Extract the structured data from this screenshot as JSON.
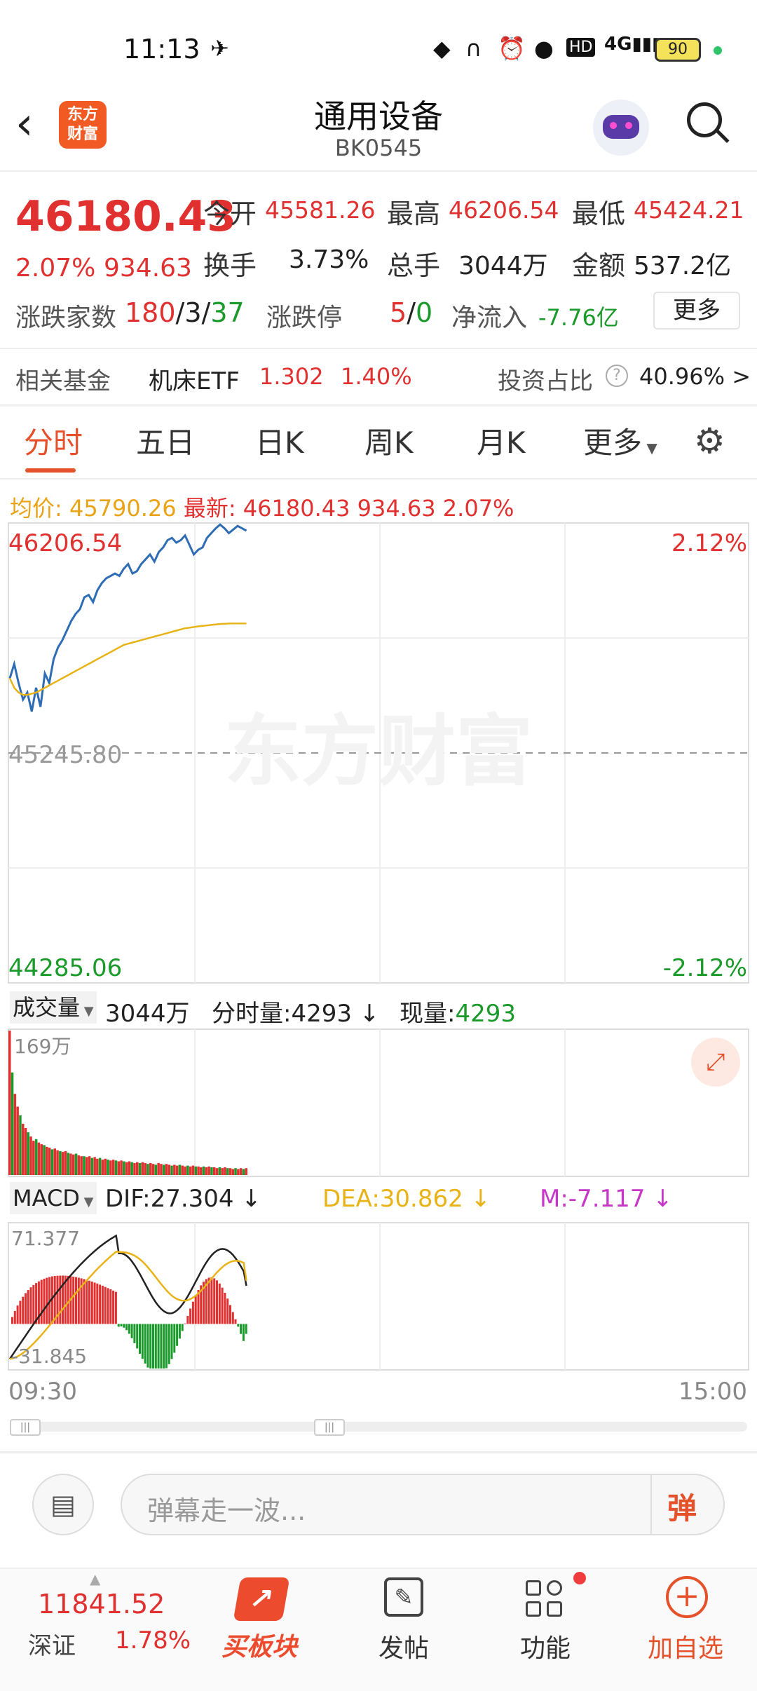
{
  "status_bar": {
    "time": "11:13",
    "battery": "90",
    "network": "4G"
  },
  "header": {
    "logo_text_line1": "东方",
    "logo_text_line2": "财富",
    "title": "通用设备",
    "code": "BK0545"
  },
  "quote": {
    "price": "46180.43",
    "change_pct": "2.07%",
    "change": "934.63",
    "open_label": "今开",
    "open": "45581.26",
    "high_label": "最高",
    "high": "46206.54",
    "low_label": "最低",
    "low": "45424.21",
    "turnover_label": "换手",
    "turnover": "3.73%",
    "volume_label": "总手",
    "volume": "3044万",
    "amount_label": "金额",
    "amount": "537.2亿",
    "breadth_label": "涨跌家数",
    "breadth_up": "180",
    "breadth_flat": "3",
    "breadth_down": "37",
    "limit_label": "涨跌停",
    "limit_up": "5",
    "limit_down": "0",
    "netflow_label": "净流入",
    "netflow": "-7.76亿",
    "more_button": "更多"
  },
  "fund": {
    "label": "相关基金",
    "name": "机床ETF",
    "price": "1.302",
    "pct": "1.40%",
    "ratio_label": "投资占比",
    "ratio": "40.96% >"
  },
  "tabs": [
    "分时",
    "五日",
    "日K",
    "周K",
    "月K",
    "更多"
  ],
  "chart_info": {
    "avg_label": "均价:",
    "avg_value": "45790.26",
    "latest_label": "最新:",
    "latest_value": "46180.43",
    "latest_change": "934.63",
    "latest_pct": "2.07%"
  },
  "chart_axes": {
    "top_price": "46206.54",
    "mid_price": "45245.80",
    "bottom_price": "44285.06",
    "top_pct": "2.12%",
    "bottom_pct": "-2.12%",
    "watermark": "东方财富",
    "time_start": "09:30",
    "time_end": "15:00"
  },
  "volume_bar": {
    "selector": "成交量",
    "total": "3044万",
    "minute_label": "分时量:",
    "minute_value": "4293",
    "current_label": "现量:",
    "current_value": "4293",
    "max_label": "169万"
  },
  "macd": {
    "selector": "MACD",
    "dif_label": "DIF:27.304",
    "dea_label": "DEA:30.862",
    "m_label": "M:-7.117",
    "max_label": "71.377",
    "min_label": "-31.845"
  },
  "comment": {
    "placeholder": "弹幕走一波...",
    "danmu_button": "弹"
  },
  "bottom_nav": {
    "index_value": "11841.52",
    "index_name": "深证",
    "index_pct": "1.78%",
    "buy_label": "买板块",
    "post_label": "发帖",
    "func_label": "功能",
    "add_label": "加自选"
  },
  "chart_data": {
    "type": "line",
    "title": "",
    "xlabel": "",
    "ylabel": "",
    "x_range": [
      "09:30",
      "15:00"
    ],
    "ylim": [
      44285.06,
      46206.54
    ],
    "reference": 45245.8,
    "series": [
      {
        "values": [
          45560,
          45620,
          45540,
          45470,
          45500,
          45420,
          45520,
          45440,
          45580,
          45540,
          45640,
          45690,
          45720,
          45760,
          45800,
          45830,
          45850,
          45900,
          45910,
          45880,
          45930,
          45960,
          45980,
          45990,
          46000,
          45990,
          46020,
          46040,
          46000,
          46010,
          46040,
          46060,
          46080,
          46050,
          46090,
          46110,
          46140,
          46150,
          46130,
          46140,
          46160,
          46120,
          46080,
          46100,
          46110,
          46150,
          46170,
          46190,
          46206,
          46190,
          46170,
          46185,
          46200,
          46190,
          46180
        ]
      },
      {
        "values": [
          45560,
          45520,
          45500,
          45490,
          45490,
          45495,
          45500,
          45510,
          45520,
          45530,
          45540,
          45550,
          45560,
          45570,
          45580,
          45590,
          45600,
          45610,
          45620,
          45630,
          45640,
          45650,
          45660,
          45670,
          45680,
          45690,
          45700,
          45705,
          45710,
          45715,
          45720,
          45725,
          45730,
          45735,
          45740,
          45745,
          45750,
          45755,
          45760,
          45765,
          45770,
          45772,
          45775,
          45778,
          45780,
          45782,
          45784,
          45786,
          45788,
          45789,
          45790,
          45790,
          45790,
          45790,
          45790
        ]
      }
    ],
    "volume": [
      169,
      120,
      95,
      80,
      70,
      60,
      55,
      50,
      45,
      40,
      42,
      38,
      36,
      35,
      33,
      32,
      30,
      31,
      29,
      28,
      27,
      28,
      26,
      25,
      24,
      25,
      23,
      22,
      22,
      21,
      22,
      20,
      21,
      19,
      20,
      18,
      19,
      18,
      17,
      18,
      17,
      16,
      17,
      16,
      15,
      16,
      15,
      14,
      15,
      14,
      15,
      14,
      13,
      14,
      13,
      12,
      14,
      13,
      12,
      13,
      12,
      11,
      12,
      11,
      12,
      11,
      10,
      11,
      10,
      11,
      10,
      10,
      9,
      10,
      9,
      10,
      9,
      9,
      8,
      9,
      8,
      9,
      8,
      8,
      7,
      8,
      7,
      8,
      7,
      8
    ],
    "macd": {
      "ylim": [
        -31.845,
        71.377
      ],
      "dif_final": 27.304,
      "dea_final": 30.862,
      "m_final": -7.117
    }
  }
}
